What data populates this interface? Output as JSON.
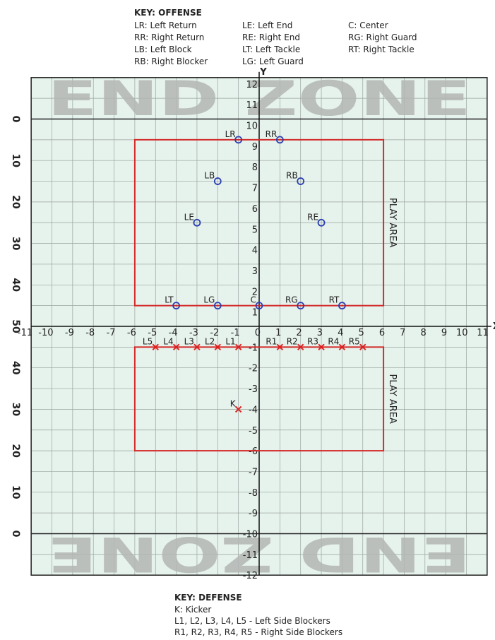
{
  "offense_key": {
    "title": "KEY: OFFENSE",
    "columns": [
      [
        "LR: Left Return",
        "RR: Right Return",
        "LB: Left Block",
        "RB: Right Blocker"
      ],
      [
        "LE: Left End",
        "RE: Right End",
        "LT: Left Tackle",
        "LG: Left Guard"
      ],
      [
        "C: Center",
        "RG: Right Guard",
        "RT: Right Tackle"
      ]
    ]
  },
  "defense_key": {
    "title": "KEY: DEFENSE",
    "items": [
      "K: Kicker",
      "L1, L2, L3, L4, L5 - Left Side Blockers",
      "R1, R2, R3, R4, R5 - Right Side Blockers"
    ]
  },
  "axes": {
    "x_label": "X",
    "y_label": "Y",
    "x_ticks": [
      "-11",
      "-10",
      "-9",
      "-8",
      "-7",
      "-6",
      "-5",
      "-4",
      "-3",
      "-2",
      "-1",
      "0",
      "1",
      "2",
      "3",
      "4",
      "5",
      "6",
      "7",
      "8",
      "9",
      "10",
      "11"
    ],
    "y_ticks_top": [
      "12",
      "11",
      "10",
      "9",
      "8",
      "7",
      "6",
      "5",
      "4",
      "3",
      "2",
      "1"
    ],
    "y_ticks_bottom": [
      "-1",
      "-2",
      "-3",
      "-4",
      "-5",
      "-6",
      "-7",
      "-8",
      "-9",
      "-10",
      "-11",
      "-12"
    ]
  },
  "yard_labels": [
    "0",
    "10",
    "20",
    "30",
    "40",
    "50",
    "40",
    "30",
    "20",
    "10",
    "0"
  ],
  "end_zones": [
    "END ZONE",
    "END ZONE"
  ],
  "play_areas": [
    "PLAY AREA",
    "PLAY AREA"
  ],
  "offense": [
    "LR",
    "RR",
    "LB",
    "RB",
    "LE",
    "RE",
    "LT",
    "LG",
    "C",
    "RG",
    "RT"
  ],
  "defense": [
    "L5",
    "L4",
    "L3",
    "L2",
    "L1",
    "R1",
    "R2",
    "R3",
    "R4",
    "R5",
    "K"
  ]
}
